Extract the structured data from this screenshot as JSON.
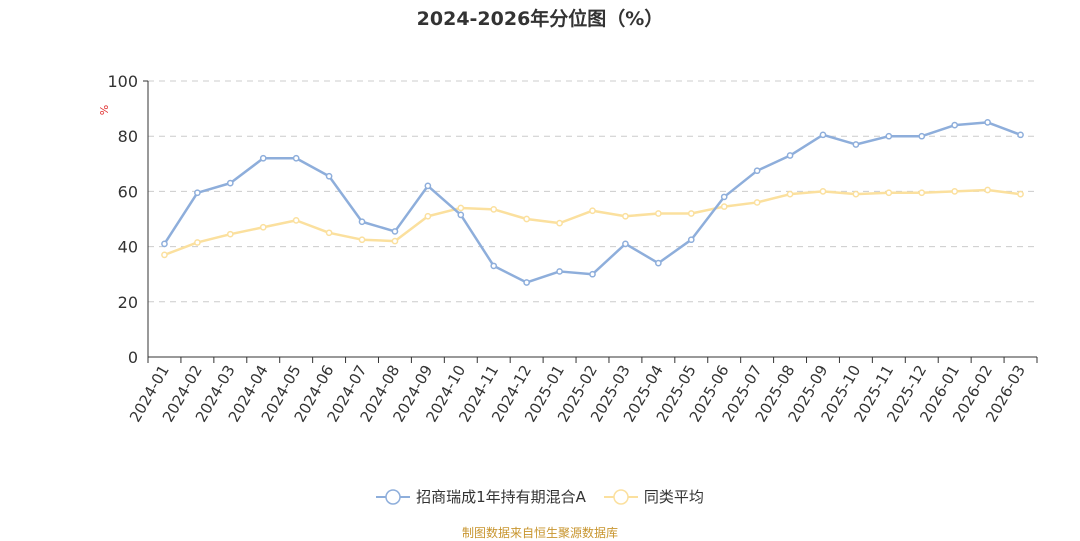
{
  "title": "2024-2026年分位图（%）",
  "source": "制图数据来自恒生聚源数据库",
  "colors": {
    "series1": "#8eaedb",
    "series2": "#fbe09e",
    "grid": "#cccccc",
    "axis": "#333333",
    "unit": "#e03030"
  },
  "chart_data": {
    "type": "line",
    "title": "2024-2026年分位图（%）",
    "ylabel": "%",
    "xlabel": "",
    "ylim": [
      0,
      100
    ],
    "yticks": [
      0,
      20,
      40,
      60,
      80,
      100
    ],
    "grid": true,
    "legend_position": "bottom",
    "categories": [
      "2024-01",
      "2024-02",
      "2024-03",
      "2024-04",
      "2024-05",
      "2024-06",
      "2024-07",
      "2024-08",
      "2024-09",
      "2024-10",
      "2024-11",
      "2024-12",
      "2025-01",
      "2025-02",
      "2025-03",
      "2025-04",
      "2025-05",
      "2025-06",
      "2025-07",
      "2025-08",
      "2025-09",
      "2025-10",
      "2025-11",
      "2025-12",
      "2026-01",
      "2026-02",
      "2026-03"
    ],
    "series": [
      {
        "name": "招商瑞成1年持有期混合A",
        "values": [
          41,
          59.5,
          63,
          72,
          72,
          65.5,
          49,
          45.5,
          62,
          51.5,
          33,
          27,
          31,
          30,
          41,
          34,
          42.5,
          58,
          67.5,
          73,
          80.5,
          77,
          80,
          80,
          84,
          85,
          80.5
        ]
      },
      {
        "name": "同类平均",
        "values": [
          37,
          41.5,
          44.5,
          47,
          49.5,
          45,
          42.5,
          42,
          51,
          54,
          53.5,
          50,
          48.5,
          53,
          51,
          52,
          52,
          54.5,
          56,
          59,
          60,
          59,
          59.5,
          59.5,
          60,
          60.5,
          59
        ]
      }
    ]
  }
}
